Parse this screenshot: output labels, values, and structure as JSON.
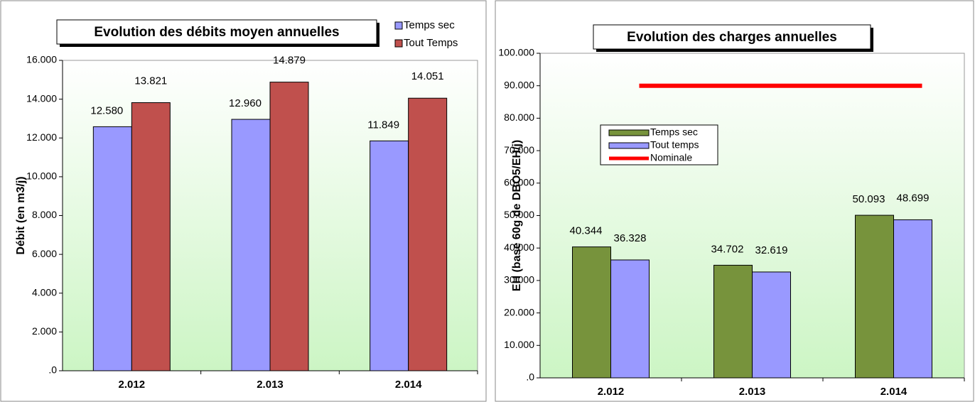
{
  "chart_data": [
    {
      "type": "bar",
      "title": "Evolution des débits moyen annuelles",
      "y_label": "Débit (en m3/j)",
      "categories": [
        "2.012",
        "2.013",
        "2.014"
      ],
      "series": [
        {
          "name": "Temps sec",
          "color": "#9999ff",
          "values": [
            12580,
            12960,
            11849
          ],
          "value_labels": [
            "12.580",
            "12.960",
            "11.849"
          ]
        },
        {
          "name": "Tout Temps",
          "color": "#c0504d",
          "values": [
            13821,
            14879,
            14051
          ],
          "value_labels": [
            "13.821",
            "14.879",
            "14.051"
          ]
        }
      ],
      "ylim": [
        0,
        16000
      ],
      "yticks": [
        {
          "value": 0,
          "label": ".0"
        },
        {
          "value": 2000,
          "label": "2.000"
        },
        {
          "value": 4000,
          "label": "4.000"
        },
        {
          "value": 6000,
          "label": "6.000"
        },
        {
          "value": 8000,
          "label": "8.000"
        },
        {
          "value": 10000,
          "label": "10.000"
        },
        {
          "value": 12000,
          "label": "12.000"
        },
        {
          "value": 14000,
          "label": "14.000"
        },
        {
          "value": 16000,
          "label": "16.000"
        }
      ],
      "grid": false,
      "legend": "top-right"
    },
    {
      "type": "bar",
      "title": "Evolution des charges annuelles",
      "y_label": "EH (base 60g de DBO5/EH/j)",
      "categories": [
        "2.012",
        "2.013",
        "2.014"
      ],
      "series": [
        {
          "name": "Temps sec",
          "color": "#77933c",
          "values": [
            40344,
            34702,
            50093
          ],
          "value_labels": [
            "40.344",
            "34.702",
            "50.093"
          ]
        },
        {
          "name": "Tout temps",
          "color": "#9999ff",
          "values": [
            36328,
            32619,
            48699
          ],
          "value_labels": [
            "36.328",
            "32.619",
            "48.699"
          ]
        },
        {
          "name": "Nominale",
          "color": "#ff0000",
          "type": "line",
          "values": [
            90000,
            90000,
            90000
          ]
        }
      ],
      "ylim": [
        0,
        100000
      ],
      "yticks": [
        {
          "value": 0,
          "label": ".0"
        },
        {
          "value": 10000,
          "label": "10.000"
        },
        {
          "value": 20000,
          "label": "20.000"
        },
        {
          "value": 30000,
          "label": "30.000"
        },
        {
          "value": 40000,
          "label": "40.000"
        },
        {
          "value": 50000,
          "label": "50.000"
        },
        {
          "value": 60000,
          "label": "60.000"
        },
        {
          "value": 70000,
          "label": "70.000"
        },
        {
          "value": 80000,
          "label": "80.000"
        },
        {
          "value": 90000,
          "label": "90.000"
        },
        {
          "value": 100000,
          "label": "100.000"
        }
      ],
      "grid": false,
      "legend": "upper-left"
    }
  ]
}
